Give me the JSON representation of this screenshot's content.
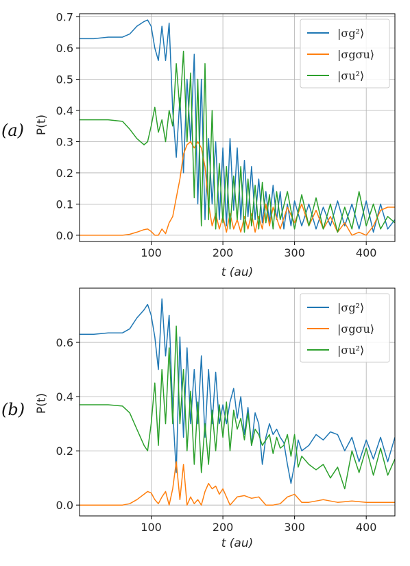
{
  "chart_data": [
    {
      "type": "line",
      "panel_label": "(a)",
      "xlabel": "t (au)",
      "ylabel": "P(t)",
      "xlim": [
        0,
        440
      ],
      "ylim": [
        -0.02,
        0.71
      ],
      "xticks": [
        100,
        200,
        300,
        400
      ],
      "yticks": [
        0.0,
        0.1,
        0.2,
        0.3,
        0.4,
        0.5,
        0.6,
        0.7
      ],
      "grid": true,
      "legend_position": "top-right",
      "series": [
        {
          "name": "|σg²⟩",
          "color": "#1f77b4",
          "x": [
            0,
            20,
            40,
            60,
            70,
            80,
            90,
            95,
            100,
            105,
            110,
            115,
            120,
            125,
            130,
            135,
            140,
            145,
            150,
            155,
            160,
            165,
            170,
            175,
            180,
            185,
            190,
            195,
            200,
            205,
            210,
            215,
            220,
            225,
            230,
            235,
            240,
            245,
            250,
            255,
            260,
            265,
            270,
            275,
            280,
            285,
            290,
            295,
            300,
            310,
            320,
            330,
            340,
            350,
            360,
            370,
            380,
            390,
            400,
            410,
            420,
            430,
            440
          ],
          "y": [
            0.63,
            0.63,
            0.635,
            0.635,
            0.645,
            0.67,
            0.685,
            0.69,
            0.67,
            0.6,
            0.56,
            0.67,
            0.56,
            0.68,
            0.4,
            0.25,
            0.44,
            0.2,
            0.5,
            0.3,
            0.58,
            0.1,
            0.5,
            0.05,
            0.31,
            0.1,
            0.3,
            0.05,
            0.28,
            0.03,
            0.31,
            0.08,
            0.28,
            0.05,
            0.24,
            0.06,
            0.22,
            0.05,
            0.18,
            0.04,
            0.14,
            0.04,
            0.16,
            0.05,
            0.14,
            0.02,
            0.1,
            0.03,
            0.11,
            0.03,
            0.1,
            0.02,
            0.09,
            0.03,
            0.11,
            0.03,
            0.1,
            0.02,
            0.11,
            0.01,
            0.1,
            0.02,
            0.05
          ]
        },
        {
          "name": "|σgσu⟩",
          "color": "#ff7f0e",
          "x": [
            0,
            20,
            40,
            60,
            70,
            80,
            90,
            95,
            100,
            105,
            110,
            115,
            120,
            125,
            130,
            135,
            140,
            145,
            150,
            155,
            160,
            165,
            170,
            175,
            180,
            185,
            190,
            195,
            200,
            205,
            210,
            215,
            220,
            225,
            230,
            235,
            240,
            245,
            250,
            255,
            260,
            265,
            270,
            280,
            290,
            300,
            310,
            320,
            330,
            340,
            350,
            360,
            370,
            380,
            390,
            400,
            410,
            420,
            430,
            440
          ],
          "y": [
            0.0,
            0.0,
            0.0,
            0.0,
            0.003,
            0.01,
            0.018,
            0.02,
            0.012,
            0.0,
            0.0,
            0.02,
            0.005,
            0.04,
            0.06,
            0.12,
            0.18,
            0.26,
            0.29,
            0.3,
            0.28,
            0.3,
            0.28,
            0.22,
            0.1,
            0.03,
            0.07,
            0.02,
            0.06,
            0.01,
            0.07,
            0.02,
            0.05,
            0.01,
            0.06,
            0.02,
            0.07,
            0.01,
            0.06,
            0.02,
            0.1,
            0.03,
            0.09,
            0.02,
            0.09,
            0.04,
            0.1,
            0.03,
            0.08,
            0.02,
            0.06,
            0.01,
            0.04,
            0.0,
            0.01,
            0.0,
            0.03,
            0.08,
            0.09,
            0.09
          ]
        },
        {
          "name": "|σu²⟩",
          "color": "#2ca02c",
          "x": [
            0,
            20,
            40,
            60,
            70,
            80,
            90,
            95,
            100,
            105,
            110,
            115,
            120,
            125,
            130,
            135,
            140,
            145,
            150,
            155,
            160,
            165,
            170,
            175,
            180,
            185,
            190,
            195,
            200,
            205,
            210,
            215,
            220,
            225,
            230,
            235,
            240,
            245,
            250,
            255,
            260,
            265,
            270,
            275,
            280,
            290,
            300,
            310,
            320,
            330,
            340,
            350,
            360,
            370,
            380,
            390,
            400,
            410,
            420,
            430,
            440
          ],
          "y": [
            0.37,
            0.37,
            0.37,
            0.365,
            0.34,
            0.31,
            0.29,
            0.3,
            0.35,
            0.41,
            0.33,
            0.37,
            0.3,
            0.4,
            0.35,
            0.55,
            0.4,
            0.59,
            0.3,
            0.52,
            0.12,
            0.5,
            0.03,
            0.55,
            0.05,
            0.4,
            0.02,
            0.23,
            0.04,
            0.22,
            0.02,
            0.19,
            0.05,
            0.22,
            0.01,
            0.18,
            0.03,
            0.16,
            0.02,
            0.17,
            0.04,
            0.13,
            0.02,
            0.14,
            0.05,
            0.14,
            0.02,
            0.13,
            0.03,
            0.12,
            0.02,
            0.1,
            0.01,
            0.09,
            0.02,
            0.14,
            0.03,
            0.1,
            0.02,
            0.06,
            0.04
          ]
        }
      ]
    },
    {
      "type": "line",
      "panel_label": "(b)",
      "xlabel": "t (au)",
      "ylabel": "P(t)",
      "xlim": [
        0,
        440
      ],
      "ylim": [
        -0.04,
        0.8
      ],
      "xticks": [
        100,
        200,
        300,
        400
      ],
      "yticks": [
        0.0,
        0.2,
        0.4,
        0.6
      ],
      "grid": true,
      "legend_position": "top-right",
      "series": [
        {
          "name": "|σg²⟩",
          "color": "#1f77b4",
          "x": [
            0,
            20,
            40,
            60,
            70,
            80,
            90,
            95,
            100,
            105,
            110,
            115,
            120,
            125,
            130,
            135,
            140,
            145,
            150,
            155,
            160,
            165,
            170,
            175,
            180,
            185,
            190,
            195,
            200,
            205,
            210,
            215,
            220,
            225,
            230,
            235,
            240,
            245,
            250,
            255,
            260,
            265,
            270,
            275,
            280,
            285,
            290,
            295,
            300,
            305,
            310,
            320,
            330,
            340,
            350,
            360,
            370,
            380,
            390,
            400,
            410,
            420,
            430,
            440
          ],
          "y": [
            0.63,
            0.63,
            0.635,
            0.635,
            0.65,
            0.69,
            0.72,
            0.74,
            0.7,
            0.62,
            0.5,
            0.76,
            0.55,
            0.7,
            0.35,
            0.12,
            0.62,
            0.25,
            0.58,
            0.3,
            0.5,
            0.3,
            0.55,
            0.25,
            0.5,
            0.3,
            0.49,
            0.3,
            0.37,
            0.3,
            0.38,
            0.43,
            0.32,
            0.4,
            0.26,
            0.36,
            0.22,
            0.34,
            0.3,
            0.15,
            0.25,
            0.3,
            0.26,
            0.28,
            0.25,
            0.23,
            0.15,
            0.08,
            0.15,
            0.24,
            0.2,
            0.22,
            0.26,
            0.24,
            0.27,
            0.26,
            0.2,
            0.25,
            0.16,
            0.24,
            0.17,
            0.25,
            0.16,
            0.25
          ]
        },
        {
          "name": "|σgσu⟩",
          "color": "#ff7f0e",
          "x": [
            0,
            20,
            40,
            60,
            70,
            80,
            90,
            95,
            100,
            105,
            110,
            115,
            120,
            125,
            130,
            135,
            140,
            145,
            150,
            155,
            160,
            165,
            170,
            175,
            180,
            185,
            190,
            195,
            200,
            210,
            220,
            230,
            240,
            250,
            260,
            270,
            280,
            290,
            295,
            300,
            310,
            320,
            340,
            360,
            380,
            400,
            420,
            440
          ],
          "y": [
            0.0,
            0.0,
            0.0,
            0.0,
            0.005,
            0.02,
            0.04,
            0.05,
            0.045,
            0.02,
            0.005,
            0.03,
            0.05,
            0.0,
            0.06,
            0.16,
            0.02,
            0.15,
            0.0,
            0.03,
            0.005,
            0.02,
            0.0,
            0.05,
            0.08,
            0.06,
            0.07,
            0.04,
            0.06,
            0.0,
            0.03,
            0.035,
            0.025,
            0.03,
            0.0,
            0.0,
            0.005,
            0.03,
            0.035,
            0.04,
            0.01,
            0.01,
            0.02,
            0.01,
            0.015,
            0.01,
            0.01,
            0.01
          ]
        },
        {
          "name": "|σu²⟩",
          "color": "#2ca02c",
          "x": [
            0,
            20,
            40,
            60,
            70,
            80,
            90,
            95,
            100,
            105,
            110,
            115,
            120,
            125,
            130,
            135,
            140,
            145,
            150,
            155,
            160,
            165,
            170,
            175,
            180,
            185,
            190,
            195,
            200,
            205,
            210,
            215,
            220,
            225,
            230,
            235,
            240,
            245,
            250,
            255,
            260,
            265,
            270,
            275,
            280,
            285,
            290,
            295,
            300,
            305,
            310,
            320,
            330,
            340,
            350,
            360,
            370,
            380,
            390,
            400,
            410,
            420,
            430,
            440
          ],
          "y": [
            0.37,
            0.37,
            0.37,
            0.365,
            0.34,
            0.28,
            0.22,
            0.2,
            0.3,
            0.45,
            0.22,
            0.5,
            0.3,
            0.58,
            0.3,
            0.66,
            0.3,
            0.5,
            0.2,
            0.42,
            0.15,
            0.38,
            0.12,
            0.3,
            0.15,
            0.35,
            0.2,
            0.37,
            0.25,
            0.38,
            0.2,
            0.35,
            0.28,
            0.32,
            0.24,
            0.34,
            0.22,
            0.28,
            0.26,
            0.22,
            0.24,
            0.26,
            0.19,
            0.25,
            0.21,
            0.22,
            0.26,
            0.18,
            0.26,
            0.14,
            0.18,
            0.15,
            0.13,
            0.15,
            0.1,
            0.14,
            0.06,
            0.2,
            0.12,
            0.21,
            0.11,
            0.21,
            0.11,
            0.17
          ]
        }
      ]
    }
  ]
}
